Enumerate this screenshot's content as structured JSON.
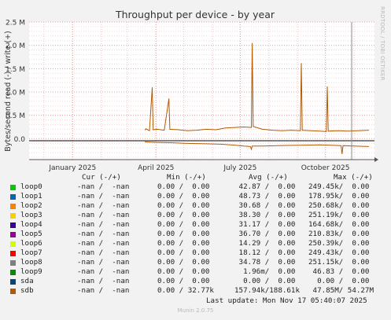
{
  "chart_data": {
    "type": "line",
    "title": "Throughput per device - by year",
    "ylabel": "Bytes/second read (-) / write (+)",
    "ylim": [
      -450000,
      2500000
    ],
    "yticks": [
      {
        "value": 0,
        "label": "0.0"
      },
      {
        "value": 500000,
        "label": "0.5 M"
      },
      {
        "value": 1000000,
        "label": "1.0 M"
      },
      {
        "value": 1500000,
        "label": "1.5 M"
      },
      {
        "value": 2000000,
        "label": "2.0 M"
      },
      {
        "value": 2500000,
        "label": "2.5 M"
      }
    ],
    "xlim": [
      "2024-11-15",
      "2025-11-23"
    ],
    "xticks": [
      {
        "date": "2025-01-01",
        "label": "January 2025"
      },
      {
        "date": "2025-04-01",
        "label": "April 2025"
      },
      {
        "date": "2025-07-01",
        "label": "July 2025"
      },
      {
        "date": "2025-10-01",
        "label": "October 2025"
      }
    ],
    "grid": true,
    "series": [
      {
        "name": "sdb",
        "color": "#b35a00",
        "write_points": [
          [
            "2025-03-20",
            180000
          ],
          [
            "2025-03-21",
            210000
          ],
          [
            "2025-03-25",
            170000
          ],
          [
            "2025-03-28",
            1100000
          ],
          [
            "2025-03-29",
            190000
          ],
          [
            "2025-04-02",
            200000
          ],
          [
            "2025-04-10",
            180000
          ],
          [
            "2025-04-15",
            860000
          ],
          [
            "2025-04-16",
            200000
          ],
          [
            "2025-04-25",
            190000
          ],
          [
            "2025-05-05",
            170000
          ],
          [
            "2025-05-15",
            180000
          ],
          [
            "2025-05-25",
            200000
          ],
          [
            "2025-06-05",
            190000
          ],
          [
            "2025-06-15",
            230000
          ],
          [
            "2025-06-25",
            240000
          ],
          [
            "2025-07-05",
            250000
          ],
          [
            "2025-07-13",
            240000
          ],
          [
            "2025-07-14",
            2050000
          ],
          [
            "2025-07-15",
            260000
          ],
          [
            "2025-07-25",
            200000
          ],
          [
            "2025-08-05",
            180000
          ],
          [
            "2025-08-15",
            170000
          ],
          [
            "2025-08-25",
            180000
          ],
          [
            "2025-09-04",
            170000
          ],
          [
            "2025-09-05",
            1620000
          ],
          [
            "2025-09-06",
            180000
          ],
          [
            "2025-09-15",
            170000
          ],
          [
            "2025-09-25",
            160000
          ],
          [
            "2025-10-02",
            150000
          ],
          [
            "2025-10-03",
            1120000
          ],
          [
            "2025-10-04",
            160000
          ],
          [
            "2025-10-15",
            170000
          ],
          [
            "2025-10-25",
            160000
          ],
          [
            "2025-11-05",
            170000
          ],
          [
            "2025-11-17",
            180000
          ]
        ],
        "read_points": [
          [
            "2025-03-20",
            -70000
          ],
          [
            "2025-04-01",
            -80000
          ],
          [
            "2025-04-20",
            -90000
          ],
          [
            "2025-05-01",
            -100000
          ],
          [
            "2025-05-20",
            -110000
          ],
          [
            "2025-06-10",
            -120000
          ],
          [
            "2025-06-25",
            -140000
          ],
          [
            "2025-07-05",
            -160000
          ],
          [
            "2025-07-12",
            -170000
          ],
          [
            "2025-07-13",
            -230000
          ],
          [
            "2025-07-14",
            -160000
          ],
          [
            "2025-07-25",
            -160000
          ],
          [
            "2025-08-10",
            -150000
          ],
          [
            "2025-08-25",
            -145000
          ],
          [
            "2025-09-10",
            -140000
          ],
          [
            "2025-09-25",
            -135000
          ],
          [
            "2025-10-05",
            -140000
          ],
          [
            "2025-10-18",
            -150000
          ],
          [
            "2025-10-19",
            -330000
          ],
          [
            "2025-10-20",
            -150000
          ],
          [
            "2025-11-01",
            -160000
          ],
          [
            "2025-11-17",
            -170000
          ]
        ]
      }
    ]
  },
  "legend": {
    "headers": {
      "cur": "Cur (-/+)",
      "min": "Min (-/+)",
      "avg": "Avg (-/+)",
      "max": "Max (-/+)"
    },
    "rows": [
      {
        "name": "loop0",
        "color": "#00cc00",
        "cur": "-nan /  -nan",
        "min": "0.00 /  0.00",
        "avg": " 42.87 /  0.00",
        "max": "249.45k/  0.00"
      },
      {
        "name": "loop1",
        "color": "#0066b3",
        "cur": "-nan /  -nan",
        "min": "0.00 /  0.00",
        "avg": " 48.73 /  0.00",
        "max": "178.95k/  0.00"
      },
      {
        "name": "loop2",
        "color": "#ff8000",
        "cur": "-nan /  -nan",
        "min": "0.00 /  0.00",
        "avg": " 30.68 /  0.00",
        "max": "250.68k/  0.00"
      },
      {
        "name": "loop3",
        "color": "#ffcc00",
        "cur": "-nan /  -nan",
        "min": "0.00 /  0.00",
        "avg": " 38.30 /  0.00",
        "max": "251.19k/  0.00"
      },
      {
        "name": "loop4",
        "color": "#330099",
        "cur": "-nan /  -nan",
        "min": "0.00 /  0.00",
        "avg": " 31.17 /  0.00",
        "max": "164.68k/  0.00"
      },
      {
        "name": "loop5",
        "color": "#990099",
        "cur": "-nan /  -nan",
        "min": "0.00 /  0.00",
        "avg": " 36.70 /  0.00",
        "max": "210.83k/  0.00"
      },
      {
        "name": "loop6",
        "color": "#ccff00",
        "cur": "-nan /  -nan",
        "min": "0.00 /  0.00",
        "avg": " 14.29 /  0.00",
        "max": "250.39k/  0.00"
      },
      {
        "name": "loop7",
        "color": "#ff0000",
        "cur": "-nan /  -nan",
        "min": "0.00 /  0.00",
        "avg": " 18.12 /  0.00",
        "max": "249.43k/  0.00"
      },
      {
        "name": "loop8",
        "color": "#808080",
        "cur": "-nan /  -nan",
        "min": "0.00 /  0.00",
        "avg": " 34.78 /  0.00",
        "max": "251.15k/  0.00"
      },
      {
        "name": "loop9",
        "color": "#008f00",
        "cur": "-nan /  -nan",
        "min": "0.00 /  0.00",
        "avg": "  1.96m/  0.00",
        "max": " 46.83 /  0.00"
      },
      {
        "name": "sda",
        "color": "#00487d",
        "cur": "-nan /  -nan",
        "min": "0.00 /  0.00",
        "avg": "  0.00 /  0.00",
        "max": "  0.00 /  0.00"
      },
      {
        "name": "sdb",
        "color": "#b35a00",
        "cur": "-nan /  -nan",
        "min": "0.00 / 32.77k",
        "avg": "157.94k/188.61k",
        "max": " 47.85M/ 54.27M"
      }
    ],
    "last_update": "Last update: Mon Nov 17 05:40:07 2025"
  },
  "watermark": "RRDTOOL / TOBI OETIKER",
  "version": "Munin 2.0.75"
}
